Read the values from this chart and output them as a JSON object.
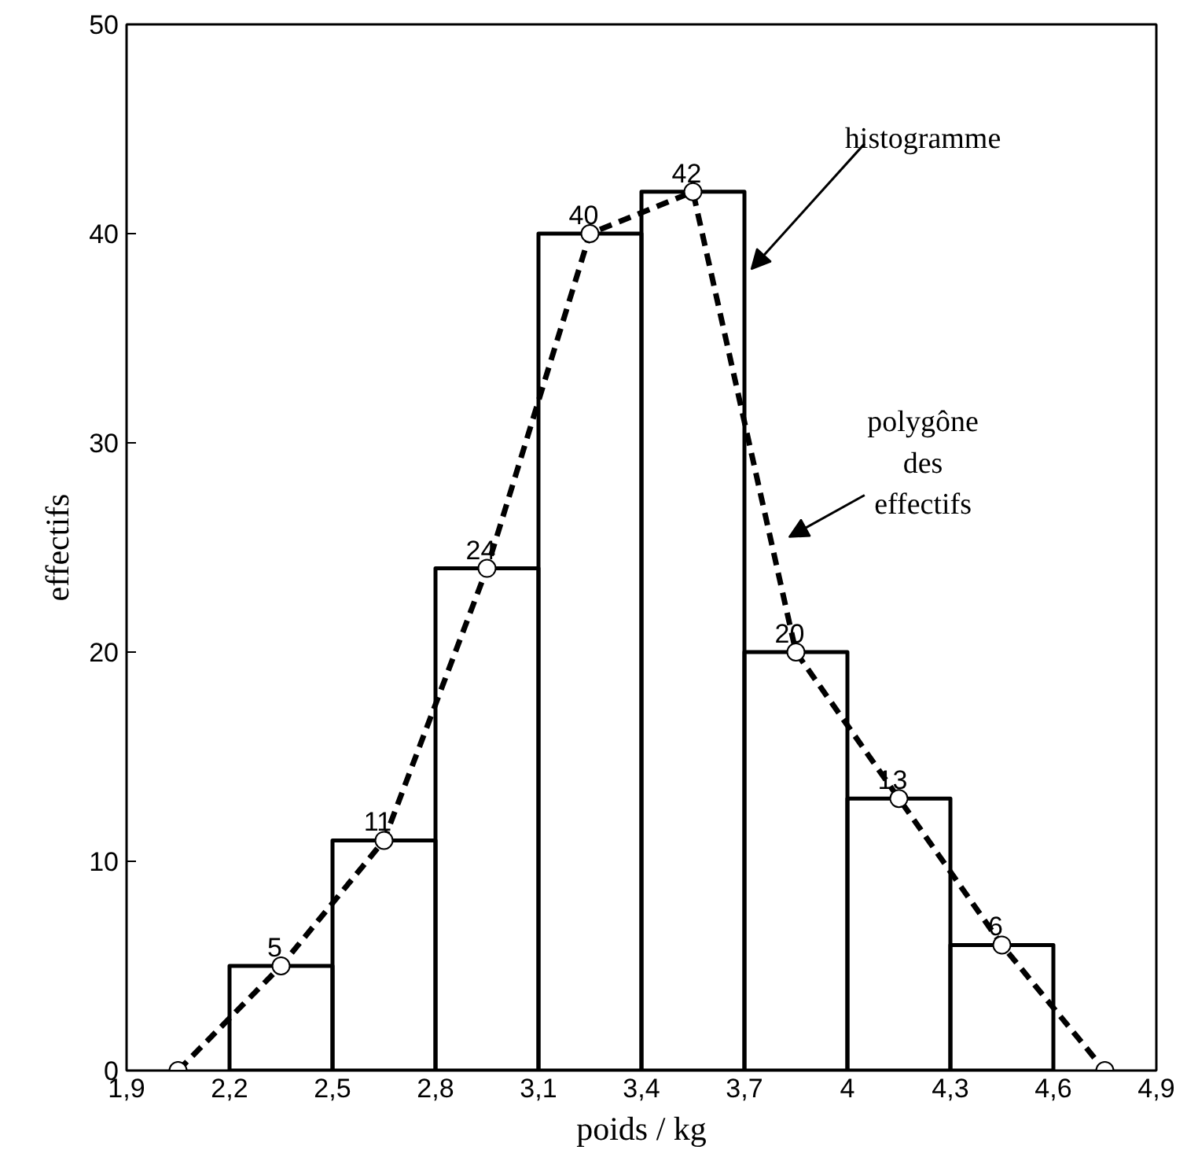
{
  "chart_data": {
    "type": "histogram",
    "xlabel": "poids / kg",
    "ylabel": "effectifs",
    "xlim": [
      1.9,
      4.9
    ],
    "ylim": [
      0,
      50
    ],
    "xticks": [
      {
        "value": 1.9,
        "label": "1,9"
      },
      {
        "value": 2.2,
        "label": "2,2"
      },
      {
        "value": 2.5,
        "label": "2,5"
      },
      {
        "value": 2.8,
        "label": "2,8"
      },
      {
        "value": 3.1,
        "label": "3,1"
      },
      {
        "value": 3.4,
        "label": "3,4"
      },
      {
        "value": 3.7,
        "label": "3,7"
      },
      4,
      {
        "value": 4.3,
        "label": "4,3"
      },
      {
        "value": 4.6,
        "label": "4,6"
      },
      {
        "value": 4.9,
        "label": "4,9"
      }
    ],
    "yticks": [
      0,
      10,
      20,
      30,
      40,
      50
    ],
    "grid": false,
    "series": [
      {
        "color": "#000000",
        "bins": [
          2.2,
          2.5,
          2.8,
          3.1,
          3.4,
          3.7,
          4.0,
          4.3,
          4.6
        ],
        "values": [
          5,
          11,
          24,
          40,
          42,
          20,
          13,
          6
        ]
      },
      {
        "type": "line",
        "color": "#000000",
        "line_style": "dashed",
        "marker": "circle",
        "x": [
          2.05,
          2.35,
          2.65,
          2.95,
          3.25,
          3.55,
          3.85,
          4.15,
          4.45,
          4.75
        ],
        "values": [
          0,
          5,
          11,
          24,
          40,
          42,
          20,
          13,
          6,
          0
        ],
        "value_labels": [
          null,
          "5",
          "11",
          "24",
          "40",
          "42",
          "20",
          "13",
          "6",
          null
        ]
      }
    ],
    "annotations": [
      "histogramme",
      "polygône\ndes\neffectifs"
    ]
  }
}
